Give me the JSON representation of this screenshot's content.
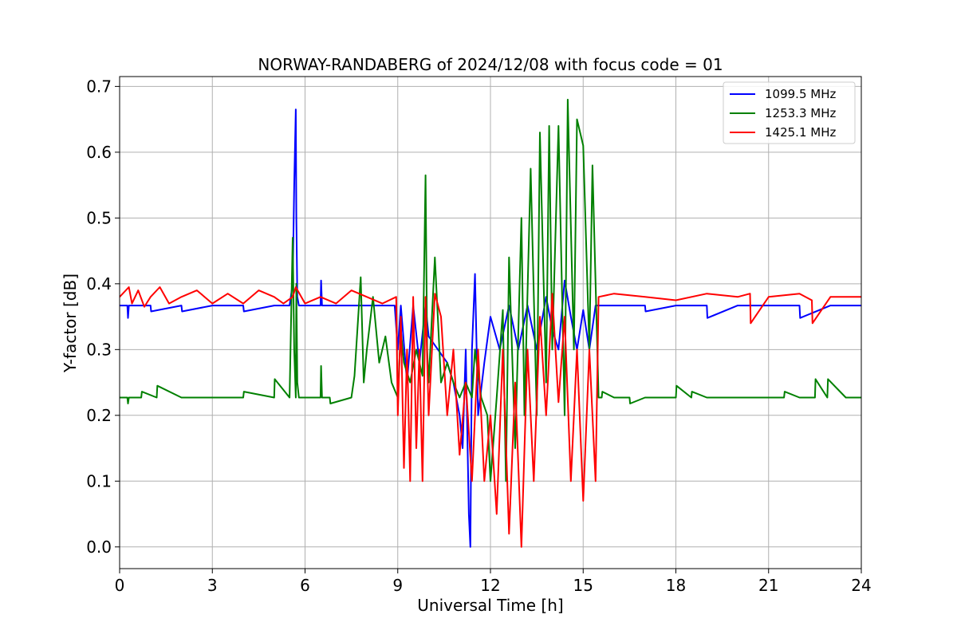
{
  "chart_data": {
    "type": "line",
    "title": "NORWAY-RANDABERG of 2024/12/08 with focus code = 01",
    "xlabel": "Universal Time [h]",
    "ylabel": "Y-factor [dB]",
    "xlim": [
      0,
      24
    ],
    "ylim": [
      -0.033,
      0.715
    ],
    "xticks": [
      0,
      3,
      6,
      9,
      12,
      15,
      18,
      21,
      24
    ],
    "yticks": [
      0.0,
      0.1,
      0.2,
      0.3,
      0.4,
      0.5,
      0.6,
      0.7
    ],
    "xtick_labels": [
      "0",
      "3",
      "6",
      "9",
      "12",
      "15",
      "18",
      "21",
      "24"
    ],
    "ytick_labels": [
      "0.0",
      "0.1",
      "0.2",
      "0.3",
      "0.4",
      "0.5",
      "0.6",
      "0.7"
    ],
    "grid": true,
    "legend_position": "top-right",
    "series": [
      {
        "name": "1099.5 MHz",
        "color": "#0000ff",
        "x": [
          0,
          0.25,
          0.27,
          0.3,
          1.0,
          1.02,
          2.0,
          2.02,
          3.0,
          4.0,
          4.02,
          5.0,
          5.5,
          5.6,
          5.65,
          5.7,
          5.72,
          5.75,
          5.8,
          6.0,
          6.5,
          6.52,
          6.55,
          7.0,
          8.0,
          8.9,
          9.0,
          9.1,
          9.3,
          9.5,
          9.7,
          9.9,
          10.0,
          10.3,
          10.6,
          10.8,
          11.0,
          11.1,
          11.2,
          11.3,
          11.35,
          11.4,
          11.5,
          11.6,
          11.8,
          12.0,
          12.3,
          12.6,
          12.9,
          13.2,
          13.5,
          13.8,
          14.0,
          14.2,
          14.4,
          14.6,
          14.8,
          15.0,
          15.2,
          15.4,
          15.5,
          16.0,
          17.0,
          17.02,
          18.0,
          19.0,
          19.02,
          20.0,
          21.0,
          22.0,
          22.02,
          23.0,
          24.0
        ],
        "y": [
          0.367,
          0.367,
          0.348,
          0.367,
          0.367,
          0.358,
          0.367,
          0.358,
          0.367,
          0.367,
          0.358,
          0.367,
          0.367,
          0.4,
          0.55,
          0.665,
          0.5,
          0.38,
          0.367,
          0.367,
          0.367,
          0.405,
          0.367,
          0.367,
          0.367,
          0.367,
          0.3,
          0.367,
          0.25,
          0.367,
          0.28,
          0.367,
          0.32,
          0.3,
          0.28,
          0.25,
          0.2,
          0.15,
          0.3,
          0.05,
          0.0,
          0.3,
          0.415,
          0.2,
          0.28,
          0.35,
          0.3,
          0.367,
          0.3,
          0.367,
          0.3,
          0.38,
          0.33,
          0.3,
          0.405,
          0.35,
          0.3,
          0.36,
          0.3,
          0.367,
          0.367,
          0.367,
          0.367,
          0.358,
          0.367,
          0.367,
          0.348,
          0.367,
          0.367,
          0.367,
          0.348,
          0.367,
          0.367
        ]
      },
      {
        "name": "1253.3 MHz",
        "color": "#008000",
        "x": [
          0,
          0.25,
          0.27,
          0.3,
          0.7,
          0.72,
          1.2,
          1.22,
          2.0,
          3.0,
          4.0,
          4.02,
          5.0,
          5.02,
          5.5,
          5.6,
          5.65,
          5.7,
          5.72,
          5.75,
          5.8,
          6.5,
          6.52,
          6.55,
          6.8,
          6.82,
          7.5,
          7.6,
          7.8,
          7.9,
          8.0,
          8.2,
          8.4,
          8.6,
          8.8,
          9.0,
          9.1,
          9.2,
          9.4,
          9.6,
          9.8,
          9.9,
          9.95,
          10.0,
          10.2,
          10.4,
          10.6,
          10.8,
          11.0,
          11.2,
          11.4,
          11.5,
          11.7,
          11.9,
          12.0,
          12.2,
          12.4,
          12.5,
          12.6,
          12.8,
          13.0,
          13.1,
          13.3,
          13.5,
          13.6,
          13.8,
          13.9,
          14.0,
          14.2,
          14.4,
          14.5,
          14.7,
          14.8,
          15.0,
          15.2,
          15.3,
          15.5,
          15.6,
          15.62,
          16.0,
          16.5,
          16.52,
          17.0,
          18.0,
          18.02,
          18.5,
          18.52,
          19.0,
          20.0,
          21.0,
          21.5,
          21.52,
          22.0,
          22.5,
          22.52,
          22.9,
          22.92,
          23.5,
          24.0
        ],
        "y": [
          0.227,
          0.227,
          0.218,
          0.227,
          0.227,
          0.236,
          0.227,
          0.245,
          0.227,
          0.227,
          0.227,
          0.236,
          0.227,
          0.255,
          0.227,
          0.47,
          0.3,
          0.227,
          0.4,
          0.25,
          0.227,
          0.227,
          0.275,
          0.227,
          0.227,
          0.218,
          0.227,
          0.26,
          0.41,
          0.25,
          0.3,
          0.38,
          0.28,
          0.32,
          0.25,
          0.227,
          0.33,
          0.28,
          0.25,
          0.3,
          0.26,
          0.565,
          0.3,
          0.25,
          0.44,
          0.25,
          0.28,
          0.25,
          0.227,
          0.25,
          0.227,
          0.3,
          0.227,
          0.2,
          0.1,
          0.227,
          0.36,
          0.1,
          0.44,
          0.15,
          0.5,
          0.2,
          0.575,
          0.2,
          0.63,
          0.25,
          0.64,
          0.3,
          0.64,
          0.2,
          0.68,
          0.3,
          0.65,
          0.61,
          0.3,
          0.58,
          0.227,
          0.227,
          0.236,
          0.227,
          0.227,
          0.218,
          0.227,
          0.227,
          0.245,
          0.227,
          0.236,
          0.227,
          0.227,
          0.227,
          0.227,
          0.236,
          0.227,
          0.227,
          0.255,
          0.227,
          0.255,
          0.227,
          0.227
        ]
      },
      {
        "name": "1425.1 MHz",
        "color": "#ff0000",
        "x": [
          0,
          0.3,
          0.4,
          0.6,
          0.8,
          1.0,
          1.3,
          1.6,
          2.0,
          2.5,
          3.0,
          3.5,
          4.0,
          4.5,
          5.0,
          5.3,
          5.6,
          5.7,
          6.0,
          6.5,
          7.0,
          7.5,
          8.0,
          8.5,
          8.95,
          9.0,
          9.1,
          9.2,
          9.3,
          9.4,
          9.5,
          9.6,
          9.7,
          9.8,
          9.9,
          10.0,
          10.2,
          10.4,
          10.6,
          10.8,
          11.0,
          11.2,
          11.4,
          11.6,
          11.8,
          12.0,
          12.2,
          12.4,
          12.6,
          12.8,
          13.0,
          13.2,
          13.4,
          13.6,
          13.8,
          14.0,
          14.2,
          14.4,
          14.6,
          14.8,
          15.0,
          15.2,
          15.4,
          15.5,
          16.0,
          17.0,
          18.0,
          19.0,
          20.0,
          20.4,
          20.42,
          21.0,
          22.0,
          22.4,
          22.42,
          23.0,
          24.0
        ],
        "y": [
          0.38,
          0.395,
          0.37,
          0.39,
          0.365,
          0.38,
          0.395,
          0.37,
          0.38,
          0.39,
          0.37,
          0.385,
          0.37,
          0.39,
          0.38,
          0.37,
          0.38,
          0.395,
          0.37,
          0.38,
          0.37,
          0.39,
          0.38,
          0.37,
          0.38,
          0.2,
          0.35,
          0.12,
          0.3,
          0.1,
          0.38,
          0.15,
          0.3,
          0.1,
          0.38,
          0.2,
          0.385,
          0.35,
          0.2,
          0.3,
          0.14,
          0.25,
          0.1,
          0.3,
          0.1,
          0.2,
          0.05,
          0.3,
          0.02,
          0.25,
          0.0,
          0.3,
          0.1,
          0.35,
          0.2,
          0.385,
          0.22,
          0.35,
          0.1,
          0.3,
          0.07,
          0.3,
          0.1,
          0.38,
          0.385,
          0.38,
          0.375,
          0.385,
          0.38,
          0.385,
          0.34,
          0.38,
          0.385,
          0.375,
          0.34,
          0.38,
          0.38
        ]
      }
    ]
  }
}
